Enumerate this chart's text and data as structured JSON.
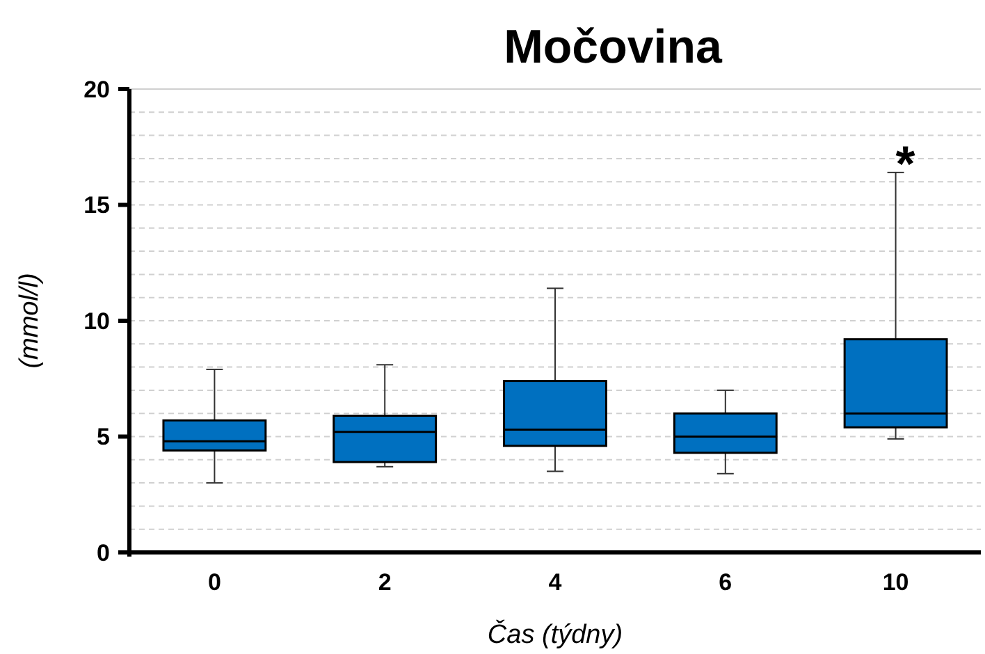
{
  "chart_data": {
    "type": "box",
    "title": "Močovina",
    "xlabel": "Čas (týdny)",
    "ylabel": "(mmol/l)",
    "categories": [
      "0",
      "2",
      "4",
      "6",
      "10"
    ],
    "color": "#0070c0",
    "boxes": [
      {
        "low": 3.0,
        "q1": 4.4,
        "median": 4.8,
        "q3": 5.7,
        "high": 7.9
      },
      {
        "low": 3.7,
        "q1": 3.9,
        "median": 5.2,
        "q3": 5.9,
        "high": 8.1
      },
      {
        "low": 3.5,
        "q1": 4.6,
        "median": 5.3,
        "q3": 7.4,
        "high": 11.4
      },
      {
        "low": 3.4,
        "q1": 4.3,
        "median": 5.0,
        "q3": 6.0,
        "high": 7.0
      },
      {
        "low": 4.9,
        "q1": 5.4,
        "median": 6.0,
        "q3": 9.2,
        "high": 16.4
      }
    ],
    "ylim": [
      0,
      20
    ],
    "yticks": [
      0,
      {
        "value": 1,
        "label": null
      },
      {
        "value": 2,
        "label": null
      },
      {
        "value": 3,
        "label": null
      },
      {
        "value": 4,
        "label": null
      },
      5,
      {
        "value": 6,
        "label": null
      },
      {
        "value": 7,
        "label": null
      },
      {
        "value": 8,
        "label": null
      },
      {
        "value": 9,
        "label": null
      },
      10,
      {
        "value": 11,
        "label": null
      },
      {
        "value": 12,
        "label": null
      },
      {
        "value": 13,
        "label": null
      },
      {
        "value": 14,
        "label": null
      },
      15,
      {
        "value": 16,
        "label": null
      },
      {
        "value": 17,
        "label": null
      },
      {
        "value": 18,
        "label": null
      },
      {
        "value": 19,
        "label": null
      },
      20
    ],
    "grid": "y",
    "annotations": [
      {
        "text": "*",
        "x": "10",
        "y": 16.4
      }
    ]
  }
}
